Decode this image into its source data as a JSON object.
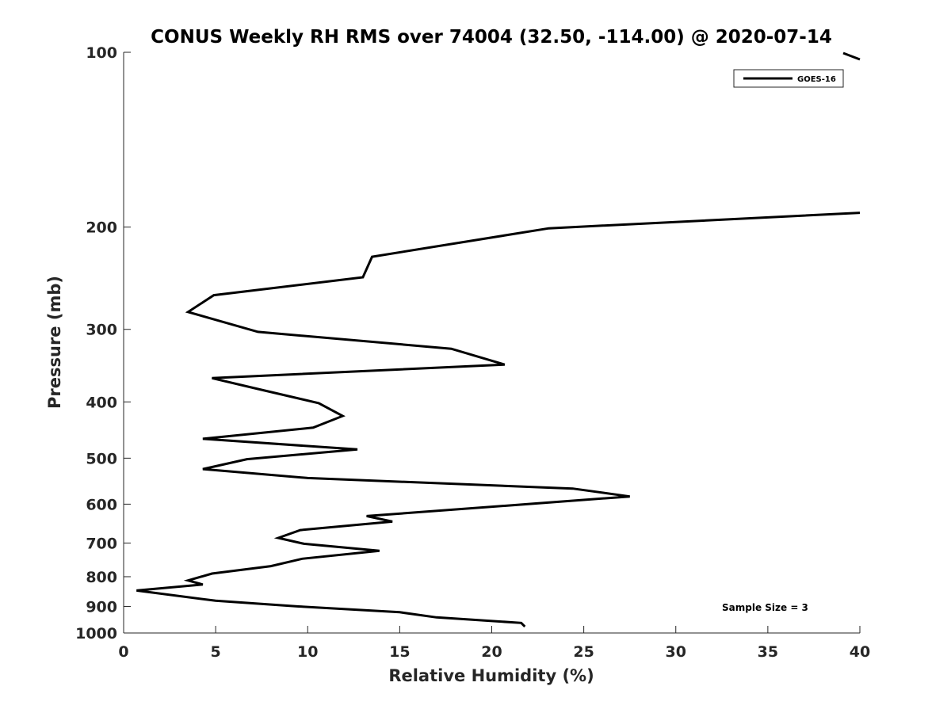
{
  "chart_data": {
    "type": "line",
    "title": "CONUS Weekly RH RMS over 74004 (32.50, -114.00) @ 2020-07-14",
    "xlabel": "Relative Humidity (%)",
    "ylabel": "Pressure (mb)",
    "xlim": [
      0,
      40
    ],
    "ylim": [
      100,
      1000
    ],
    "y_scale": "log",
    "y_reversed": true,
    "grid": false,
    "legend_position": "top-right",
    "x_ticks": [
      "0",
      "5",
      "10",
      "15",
      "20",
      "25",
      "30",
      "35",
      "40"
    ],
    "y_ticks": [
      "100",
      "200",
      "300",
      "400",
      "500",
      "600",
      "700",
      "800",
      "900",
      "1000"
    ],
    "annotation": "Sample Size = 3",
    "series": [
      {
        "name": "GOES-16",
        "color": "#000000",
        "points": [
          [
            21.8,
            975
          ],
          [
            21.6,
            961
          ],
          [
            17.0,
            940
          ],
          [
            15.0,
            921
          ],
          [
            9.5,
            900
          ],
          [
            5.0,
            880
          ],
          [
            0.7,
            845
          ],
          [
            4.3,
            825
          ],
          [
            3.5,
            812
          ],
          [
            4.8,
            790
          ],
          [
            8.0,
            767
          ],
          [
            9.7,
            745
          ],
          [
            13.9,
            722
          ],
          [
            9.8,
            702
          ],
          [
            8.4,
            686
          ],
          [
            9.6,
            665
          ],
          [
            14.6,
            643
          ],
          [
            13.2,
            629
          ],
          [
            27.5,
            582
          ],
          [
            24.4,
            564
          ],
          [
            10.0,
            541
          ],
          [
            4.3,
            522
          ],
          [
            6.7,
            502
          ],
          [
            12.7,
            483
          ],
          [
            4.3,
            463
          ],
          [
            10.3,
            443
          ],
          [
            11.9,
            423
          ],
          [
            10.6,
            402
          ],
          [
            7.3,
            380
          ],
          [
            4.8,
            364
          ],
          [
            20.7,
            345
          ],
          [
            17.8,
            324
          ],
          [
            7.3,
            303
          ],
          [
            3.5,
            280
          ],
          [
            4.9,
            262
          ],
          [
            13.0,
            244
          ],
          [
            13.5,
            225
          ],
          [
            23.1,
            201
          ],
          [
            40.0,
            189
          ]
        ]
      }
    ]
  }
}
